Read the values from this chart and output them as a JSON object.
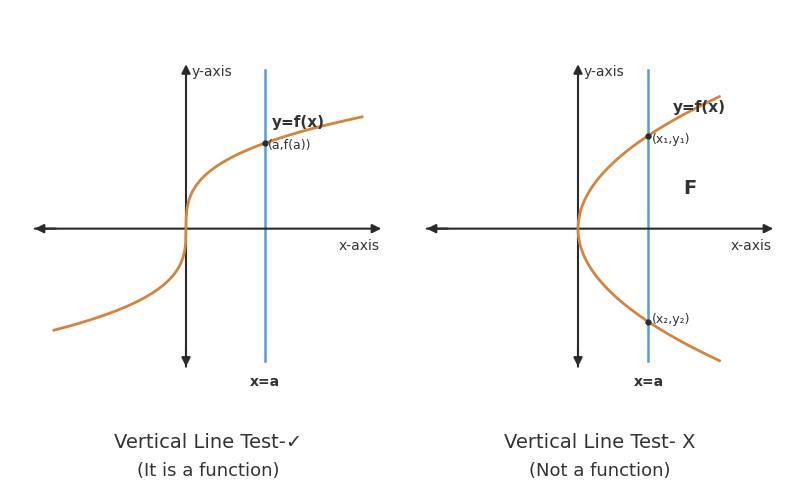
{
  "bg_color": "#ffffff",
  "curve_color": "#d4843e",
  "axis_color": "#2b2b2b",
  "vline_color": "#5b9bd5",
  "text_color": "#333333",
  "left_title": "Vertical Line Test-✓",
  "left_subtitle": "(It is a function)",
  "right_title": "Vertical Line Test- X",
  "right_subtitle": "(Not a function)",
  "title_fontsize": 14,
  "subtitle_fontsize": 13,
  "label_fontsize": 10,
  "annotation_fontsize": 9,
  "bold_fontsize": 11
}
